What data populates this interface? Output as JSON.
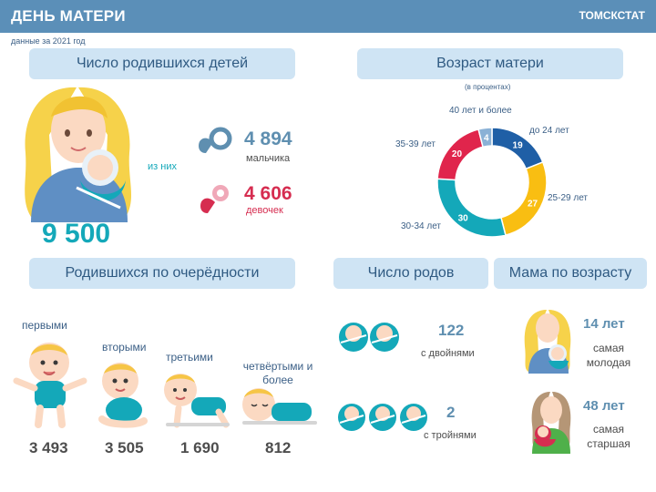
{
  "header": {
    "title": "ДЕНЬ МАТЕРИ",
    "org": "ТОМСКСТАТ",
    "subtitle": "данные за 2021 год"
  },
  "births": {
    "title": "Число родившихся детей",
    "total": "9 500",
    "of_them": "из них",
    "boys_value": "4 894",
    "boys_label": "мальчика",
    "girls_value": "4 606",
    "girls_label": "девочек"
  },
  "age": {
    "title": "Возраст матери",
    "note": "(в процентах)",
    "labels": [
      "до 24 лет",
      "25-29 лет",
      "30-34 лет",
      "35-39 лет",
      "40 лет и более"
    ]
  },
  "order": {
    "title": "Родившихся по очерёдности",
    "items": [
      {
        "label": "первыми",
        "value": "3 493"
      },
      {
        "label": "вторыми",
        "value": "3 505"
      },
      {
        "label": "третьими",
        "value": "1 690"
      },
      {
        "label": "четвёртыми и более",
        "value": "812"
      }
    ]
  },
  "deliveries": {
    "title": "Число родов",
    "twins_value": "122",
    "twins_label": "с двойнями",
    "triplets_value": "2",
    "triplets_label": "с тройнями"
  },
  "mom_age": {
    "title": "Мама по возрасту",
    "young_value": "14 лет",
    "young_label": "самая молодая",
    "old_value": "48 лет",
    "old_label": "самая старшая"
  },
  "chart_data": {
    "type": "pie",
    "donut": true,
    "categories": [
      "до 24 лет",
      "25-29 лет",
      "30-34 лет",
      "35-39 лет",
      "40 лет и более"
    ],
    "values": [
      19,
      27,
      30,
      20,
      4
    ],
    "colors": [
      "#1f5fa6",
      "#f9be12",
      "#14a8b9",
      "#e0254c",
      "#8ab1d6"
    ],
    "title": "Возраст матери"
  },
  "colors": {
    "header": "#5b8fb8",
    "pill": "#cfe4f4",
    "teal": "#14a8b9",
    "boy": "#5f8fb0",
    "girl": "#d62d50"
  }
}
